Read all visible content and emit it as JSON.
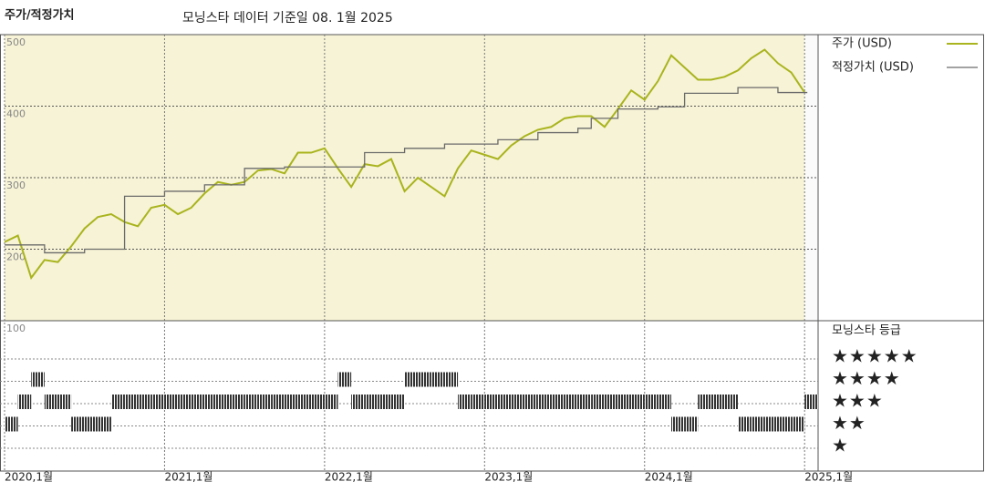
{
  "chart_data": [
    {
      "type": "line",
      "title": "주가/적정가치",
      "subtitle": "모닝스타 데이터 기준일 08. 1월 2025",
      "x": [
        "2020-01",
        "2020-02",
        "2020-03",
        "2020-04",
        "2020-05",
        "2020-06",
        "2020-07",
        "2020-08",
        "2020-09",
        "2020-10",
        "2020-11",
        "2020-12",
        "2021-01",
        "2021-02",
        "2021-03",
        "2021-04",
        "2021-05",
        "2021-06",
        "2021-07",
        "2021-08",
        "2021-09",
        "2021-10",
        "2021-11",
        "2021-12",
        "2022-01",
        "2022-02",
        "2022-03",
        "2022-04",
        "2022-05",
        "2022-06",
        "2022-07",
        "2022-08",
        "2022-09",
        "2022-10",
        "2022-11",
        "2022-12",
        "2023-01",
        "2023-02",
        "2023-03",
        "2023-04",
        "2023-05",
        "2023-06",
        "2023-07",
        "2023-08",
        "2023-09",
        "2023-10",
        "2023-11",
        "2023-12",
        "2024-01",
        "2024-02",
        "2024-03",
        "2024-04",
        "2024-05",
        "2024-06",
        "2024-07",
        "2024-08",
        "2024-09",
        "2024-10",
        "2024-11",
        "2024-12",
        "2025-01"
      ],
      "series": [
        {
          "name": "주가 (USD)",
          "color": "#a9b41e",
          "values": [
            210,
            219,
            160,
            185,
            182,
            204,
            229,
            245,
            249,
            238,
            232,
            258,
            262,
            249,
            258,
            278,
            294,
            290,
            294,
            310,
            312,
            306,
            335,
            335,
            341,
            313,
            287,
            319,
            316,
            326,
            281,
            300,
            287,
            274,
            313,
            338,
            332,
            326,
            345,
            358,
            367,
            371,
            383,
            386,
            386,
            371,
            396,
            422,
            409,
            435,
            471,
            454,
            437,
            437,
            441,
            450,
            467,
            479,
            460,
            447,
            419
          ]
        },
        {
          "name": "적정가치 (USD)",
          "color": "#6b6b6b",
          "step": true,
          "values": [
            206,
            206,
            206,
            206,
            195,
            195,
            195,
            200,
            200,
            200,
            274,
            274,
            274,
            281,
            281,
            281,
            290,
            290,
            290,
            313,
            313,
            313,
            315,
            315,
            315,
            315,
            315,
            315,
            335,
            335,
            335,
            341,
            341,
            341,
            347,
            347,
            347,
            347,
            353,
            353,
            353,
            363,
            363,
            363,
            369,
            383,
            383,
            396,
            396,
            396,
            399,
            399,
            418,
            418,
            418,
            418,
            426,
            426,
            426,
            419,
            419
          ]
        }
      ],
      "ylim": [
        100,
        500
      ],
      "yticks": [
        100,
        200,
        300,
        400,
        500
      ],
      "xticks": [
        {
          "value": "2020-01",
          "label": "2020,1월"
        },
        {
          "value": "2021-01",
          "label": "2021,1월"
        },
        {
          "value": "2022-01",
          "label": "2022,1월"
        },
        {
          "value": "2023-01",
          "label": "2023,1월"
        },
        {
          "value": "2024-01",
          "label": "2024,1월"
        },
        {
          "value": "2025-01",
          "label": "2025,1월"
        }
      ],
      "grid": true,
      "background": "#f7f3d6"
    },
    {
      "type": "rating",
      "title": "모닝스타 등급",
      "levels": [
        "★",
        "★★",
        "★★★",
        "★★★★",
        "★★★★★"
      ],
      "color": "#333333",
      "values": [
        2,
        3,
        4,
        3,
        3,
        2,
        2,
        2,
        3,
        3,
        3,
        3,
        3,
        3,
        3,
        3,
        3,
        3,
        3,
        3,
        3,
        3,
        3,
        3,
        3,
        4,
        3,
        3,
        3,
        3,
        4,
        4,
        4,
        4,
        3,
        3,
        3,
        3,
        3,
        3,
        3,
        3,
        3,
        3,
        3,
        3,
        3,
        3,
        3,
        3,
        2,
        2,
        3,
        3,
        3,
        2,
        2,
        2,
        2,
        2,
        3
      ]
    }
  ]
}
